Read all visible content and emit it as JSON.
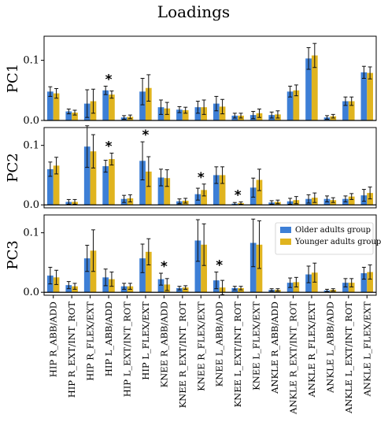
{
  "chart_data": {
    "type": "bar",
    "title": "Loadings",
    "categories": [
      "HIP R_ABB/ADD",
      "HIP R_EXT/INT_ROT",
      "HIP R_FLEX/EXT",
      "HIP L_ABB/ADD",
      "HIP L_EXT/INT_ROT",
      "HIP L_FLEX/EXT",
      "KNEE R_ABB/ADD",
      "KNEE R_EXT/INT_ROT",
      "KNEE R_FLEX/EXT",
      "KNEE L_ABB/ADD",
      "KNEE L_EXT/INT_ROT",
      "KNEE L_FLEX/EXT",
      "ANKLE R_ABB/ADD",
      "ANKLE R_EXT/INT_ROT",
      "ANKLE R_FLEX/EXT",
      "ANKLE L_ABB/ADD",
      "ANKLE L_EXT/INT_ROT",
      "ANKLE L_FLEX/EXT"
    ],
    "legend": {
      "placement": "right",
      "entries": [
        "Older adults group",
        "Younger adults group"
      ]
    },
    "colors": {
      "older": "#3d7fd6",
      "younger": "#e0b41f"
    },
    "panels": [
      {
        "ylabel": "PC1",
        "ylim": [
          0,
          0.14
        ],
        "yticks": [
          0.0,
          0.1
        ],
        "series": [
          {
            "name": "Older adults group",
            "values": [
              0.048,
              0.015,
              0.028,
              0.05,
              0.005,
              0.048,
              0.022,
              0.018,
              0.022,
              0.028,
              0.008,
              0.009,
              0.009,
              0.048,
              0.103,
              0.005,
              0.032,
              0.08
            ],
            "errors": [
              0.008,
              0.004,
              0.023,
              0.007,
              0.003,
              0.022,
              0.012,
              0.005,
              0.01,
              0.012,
              0.004,
              0.006,
              0.005,
              0.009,
              0.018,
              0.003,
              0.007,
              0.01
            ]
          },
          {
            "name": "Younger adults group",
            "values": [
              0.045,
              0.013,
              0.032,
              0.043,
              0.006,
              0.054,
              0.02,
              0.017,
              0.022,
              0.023,
              0.008,
              0.012,
              0.01,
              0.05,
              0.108,
              0.007,
              0.032,
              0.079
            ],
            "errors": [
              0.008,
              0.004,
              0.02,
              0.006,
              0.003,
              0.022,
              0.01,
              0.005,
              0.012,
              0.012,
              0.004,
              0.007,
              0.006,
              0.009,
              0.02,
              0.003,
              0.007,
              0.01
            ]
          }
        ],
        "stars": [
          3
        ]
      },
      {
        "ylabel": "PC2",
        "ylim": [
          -0.005,
          0.13
        ],
        "yticks": [
          0.0,
          0.1
        ],
        "series": [
          {
            "name": "Older adults group",
            "values": [
              0.06,
              0.005,
              0.098,
              0.065,
              0.01,
              0.074,
              0.046,
              0.006,
              0.018,
              0.05,
              0.002,
              0.029,
              0.004,
              0.006,
              0.01,
              0.01,
              0.01,
              0.016
            ],
            "errors": [
              0.012,
              0.004,
              0.035,
              0.01,
              0.006,
              0.032,
              0.014,
              0.004,
              0.01,
              0.014,
              0.002,
              0.016,
              0.003,
              0.005,
              0.007,
              0.005,
              0.005,
              0.01
            ]
          },
          {
            "name": "Younger adults group",
            "values": [
              0.066,
              0.005,
              0.09,
              0.077,
              0.011,
              0.056,
              0.045,
              0.007,
              0.025,
              0.05,
              0.003,
              0.042,
              0.005,
              0.008,
              0.012,
              0.008,
              0.014,
              0.02
            ],
            "errors": [
              0.014,
              0.004,
              0.028,
              0.01,
              0.006,
              0.025,
              0.014,
              0.004,
              0.01,
              0.014,
              0.002,
              0.018,
              0.003,
              0.006,
              0.008,
              0.004,
              0.005,
              0.01
            ]
          }
        ],
        "stars": [
          3,
          5,
          8,
          10
        ]
      },
      {
        "ylabel": "PC3",
        "ylim": [
          -0.005,
          0.13
        ],
        "yticks": [
          0.0,
          0.1
        ],
        "series": [
          {
            "name": "Older adults group",
            "values": [
              0.028,
              0.012,
              0.057,
              0.025,
              0.01,
              0.057,
              0.022,
              0.007,
              0.087,
              0.02,
              0.007,
              0.083,
              0.004,
              0.016,
              0.03,
              0.003,
              0.016,
              0.032
            ],
            "errors": [
              0.014,
              0.006,
              0.022,
              0.014,
              0.005,
              0.024,
              0.01,
              0.003,
              0.035,
              0.014,
              0.003,
              0.04,
              0.002,
              0.008,
              0.014,
              0.002,
              0.007,
              0.01
            ]
          },
          {
            "name": "Younger adults group",
            "values": [
              0.025,
              0.01,
              0.07,
              0.022,
              0.01,
              0.068,
              0.013,
              0.008,
              0.08,
              0.008,
              0.007,
              0.08,
              0.004,
              0.017,
              0.033,
              0.004,
              0.016,
              0.034
            ],
            "errors": [
              0.012,
              0.005,
              0.035,
              0.012,
              0.005,
              0.022,
              0.01,
              0.003,
              0.035,
              0.012,
              0.003,
              0.04,
              0.002,
              0.008,
              0.016,
              0.002,
              0.007,
              0.012
            ]
          }
        ],
        "stars": [
          6,
          9
        ]
      }
    ]
  }
}
